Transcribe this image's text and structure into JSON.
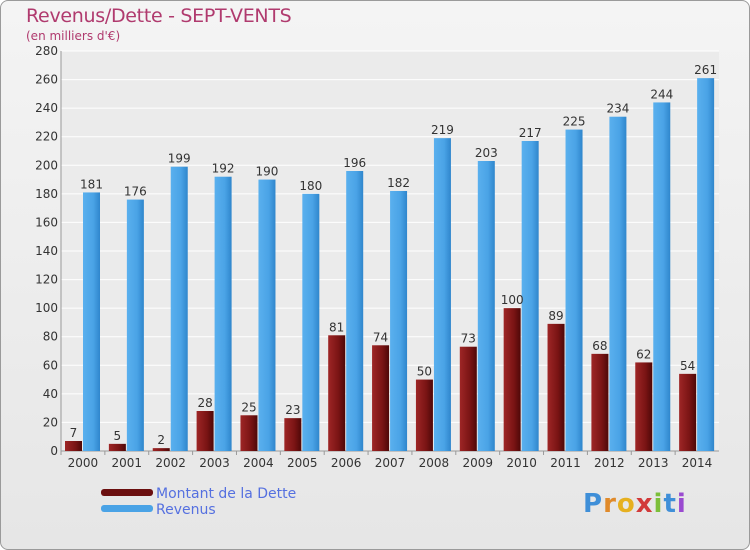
{
  "header": {
    "title": "Revenus/Dette - SEPT-VENTS",
    "subtitle": "(en milliers d'€)"
  },
  "chart_data": {
    "type": "bar",
    "title": "Revenus/Dette - SEPT-VENTS",
    "subtitle": "(en milliers d'€)",
    "categories": [
      "2000",
      "2001",
      "2002",
      "2003",
      "2004",
      "2005",
      "2006",
      "2007",
      "2008",
      "2009",
      "2010",
      "2011",
      "2012",
      "2013",
      "2014"
    ],
    "series": [
      {
        "name": "Montant de la Dette",
        "color": "#8b1a1a",
        "values": [
          7,
          5,
          2,
          28,
          25,
          23,
          81,
          74,
          50,
          73,
          100,
          89,
          68,
          62,
          54
        ]
      },
      {
        "name": "Revenus",
        "color": "#4aa3e6",
        "values": [
          181,
          176,
          199,
          192,
          190,
          180,
          196,
          182,
          219,
          203,
          217,
          225,
          234,
          244,
          261
        ]
      }
    ],
    "ylim": [
      0,
      280
    ],
    "yticks": [
      0,
      20,
      40,
      60,
      80,
      100,
      120,
      140,
      160,
      180,
      200,
      220,
      240,
      260,
      280
    ],
    "grid": true,
    "legend_position": "bottom-left"
  },
  "legend": {
    "items": [
      {
        "label": "Montant de la Dette",
        "color": "#6b0f0f"
      },
      {
        "label": "Revenus",
        "color": "#4aa3e6"
      }
    ]
  },
  "logo": {
    "letters": [
      "P",
      "r",
      "o",
      "x",
      "i",
      "t",
      "i"
    ],
    "colors": [
      "#3f8fd8",
      "#e08a2a",
      "#e6b020",
      "#d23a3a",
      "#7cbf3a",
      "#3f8fd8",
      "#9a4ad0"
    ]
  }
}
